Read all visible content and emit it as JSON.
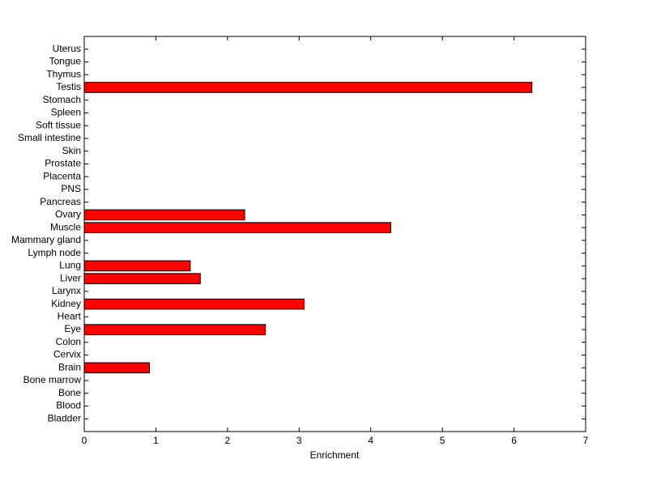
{
  "chart_data": {
    "type": "barh",
    "xlabel": "Enrichment",
    "categories": [
      "Bladder",
      "Blood",
      "Bone",
      "Bone marrow",
      "Brain",
      "Cervix",
      "Colon",
      "Eye",
      "Heart",
      "Kidney",
      "Larynx",
      "Liver",
      "Lung",
      "Lymph node",
      "Mammary gland",
      "Muscle",
      "Ovary",
      "Pancreas",
      "PNS",
      "Placenta",
      "Prostate",
      "Skin",
      "Small intestine",
      "Soft tissue",
      "Spleen",
      "Stomach",
      "Testis",
      "Thymus",
      "Tongue",
      "Uterus"
    ],
    "values": [
      0,
      0,
      0,
      0,
      0.91,
      0,
      0,
      2.53,
      0,
      3.07,
      0,
      1.62,
      1.48,
      0,
      0,
      4.28,
      2.24,
      0,
      0,
      0,
      0,
      0,
      0,
      0,
      0,
      0,
      6.25,
      0,
      0,
      0
    ],
    "color": "#ff0000",
    "xlim": [
      0,
      7
    ],
    "xticks": [
      0,
      1,
      2,
      3,
      4,
      5,
      6,
      7
    ]
  }
}
